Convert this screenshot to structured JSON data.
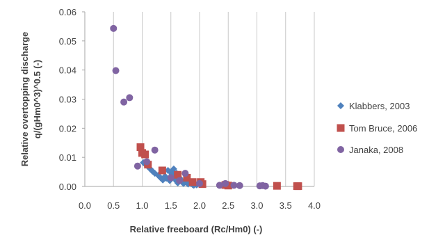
{
  "chart_data": {
    "type": "scatter",
    "xlabel": "Relative freeboard (Rc/Hm0) (-)",
    "ylabel_lines": [
      "Relative overtopping discharge",
      "q/(gHm0^3)^0.5 (-)"
    ],
    "xlim": [
      0.0,
      4.0
    ],
    "ylim": [
      0.0,
      0.06
    ],
    "x_ticks": [
      "0.0",
      "0.5",
      "1.0",
      "1.5",
      "2.0",
      "2.5",
      "3.0",
      "3.5",
      "4.0"
    ],
    "y_ticks": [
      "0.00",
      "0.01",
      "0.02",
      "0.03",
      "0.04",
      "0.05",
      "0.06"
    ],
    "grid": "vertical",
    "legend_position": "right",
    "series": [
      {
        "name": "Klabbers, 2003",
        "marker": "diamond",
        "color": "#4f81bd",
        "points": [
          [
            1.02,
            0.0082
          ],
          [
            1.06,
            0.0075
          ],
          [
            1.1,
            0.0068
          ],
          [
            1.14,
            0.006
          ],
          [
            1.18,
            0.0052
          ],
          [
            1.22,
            0.0045
          ],
          [
            1.28,
            0.0038
          ],
          [
            1.32,
            0.003
          ],
          [
            1.36,
            0.0022
          ],
          [
            1.4,
            0.0035
          ],
          [
            1.45,
            0.0055
          ],
          [
            1.5,
            0.0048
          ],
          [
            1.52,
            0.0042
          ],
          [
            1.55,
            0.003
          ],
          [
            1.58,
            0.0025
          ],
          [
            1.6,
            0.0018
          ],
          [
            1.62,
            0.0012
          ],
          [
            1.65,
            0.003
          ],
          [
            1.68,
            0.0022
          ],
          [
            1.7,
            0.0015
          ],
          [
            1.72,
            0.001
          ],
          [
            1.75,
            0.002
          ],
          [
            1.78,
            0.0012
          ],
          [
            1.8,
            0.0008
          ],
          [
            1.82,
            0.0015
          ],
          [
            1.85,
            0.001
          ],
          [
            1.88,
            0.0006
          ],
          [
            1.9,
            0.0004
          ],
          [
            1.92,
            0.0008
          ],
          [
            1.95,
            0.0005
          ],
          [
            1.55,
            0.006
          ],
          [
            1.6,
            0.0045
          ],
          [
            1.48,
            0.002
          ],
          [
            1.42,
            0.0028
          ]
        ]
      },
      {
        "name": "Tom Bruce, 2006",
        "marker": "square",
        "color": "#c0504d",
        "points": [
          [
            0.97,
            0.0135
          ],
          [
            1.0,
            0.0115
          ],
          [
            1.05,
            0.011
          ],
          [
            1.1,
            0.0075
          ],
          [
            1.35,
            0.0055
          ],
          [
            1.62,
            0.004
          ],
          [
            1.78,
            0.003
          ],
          [
            1.88,
            0.0015
          ],
          [
            2.02,
            0.0015
          ],
          [
            2.05,
            0.0008
          ],
          [
            2.45,
            0.0005
          ],
          [
            2.5,
            0.0003
          ],
          [
            3.35,
            0.0002
          ],
          [
            3.7,
            0.0001
          ],
          [
            3.72,
            0.0001
          ]
        ]
      },
      {
        "name": "Janaka, 2008",
        "marker": "circle",
        "color": "#8064a2",
        "points": [
          [
            0.5,
            0.0543
          ],
          [
            0.54,
            0.0398
          ],
          [
            0.68,
            0.029
          ],
          [
            0.78,
            0.0305
          ],
          [
            0.92,
            0.007
          ],
          [
            1.08,
            0.0085
          ],
          [
            1.22,
            0.0125
          ],
          [
            1.5,
            0.003
          ],
          [
            1.65,
            0.002
          ],
          [
            1.75,
            0.0045
          ],
          [
            2.0,
            0.001
          ],
          [
            2.35,
            0.0004
          ],
          [
            2.45,
            0.001
          ],
          [
            2.6,
            0.0004
          ],
          [
            2.7,
            0.0003
          ],
          [
            3.05,
            0.0002
          ],
          [
            3.1,
            0.0003
          ],
          [
            3.15,
            0.0001
          ]
        ]
      }
    ]
  }
}
